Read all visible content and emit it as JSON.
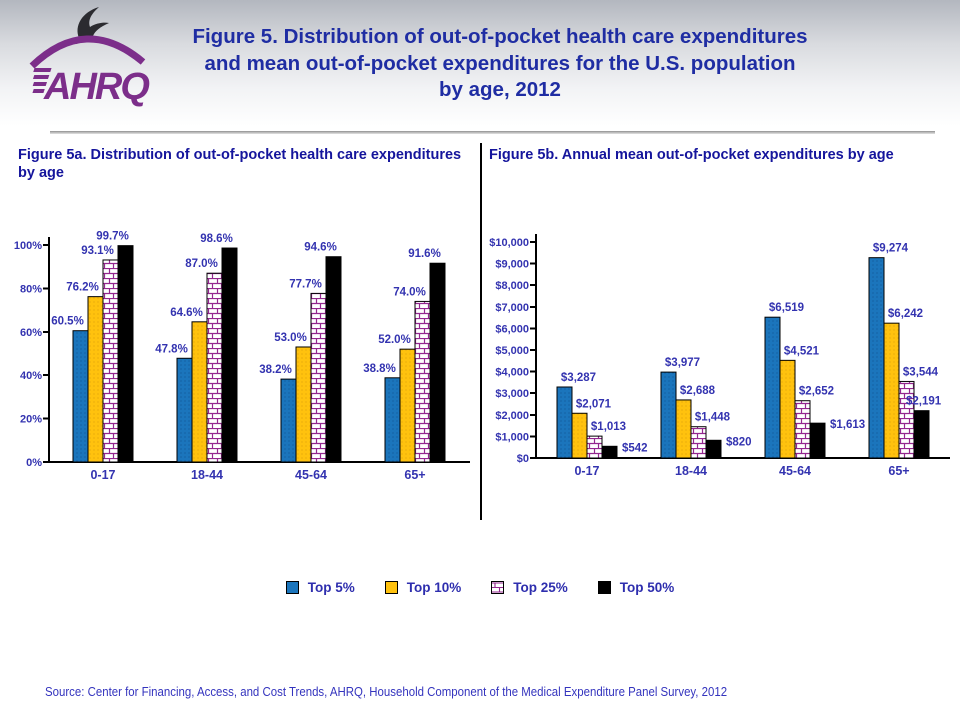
{
  "header": {
    "title": "Figure 5. Distribution of out-of-pocket health care expenditures and mean out-of-pocket expenditures for the U.S. population by age, 2012",
    "logo_text": "AHRQ"
  },
  "panels": [
    {
      "subtitle": "Figure 5a. Distribution of out-of-pocket health care expenditures by age"
    },
    {
      "subtitle": "Figure 5b. Annual mean out-of-pocket expenditures by age"
    }
  ],
  "legend": [
    {
      "label": "Top 5%",
      "fill": "blue"
    },
    {
      "label": "Top 10%",
      "fill": "yellow"
    },
    {
      "label": "Top 25%",
      "fill": "brick"
    },
    {
      "label": "Top 50%",
      "fill": "black"
    }
  ],
  "colors": {
    "bar_blue": "#1b75bc",
    "bar_yellow": "#ffc20e",
    "brick_line": "#93278f",
    "bar_black": "#000000",
    "label_blue": "#3333b0",
    "title_blue": "#1f2da3",
    "logo_purple": "#7c2e8a"
  },
  "source": "Source: Center for Financing, Access, and Cost Trends, AHRQ, Household Component of the Medical Expenditure Panel Survey, 2012",
  "chart_data": [
    {
      "type": "bar",
      "title": "Figure 5a. Distribution of out-of-pocket health care expenditures by age",
      "categories": [
        "0-17",
        "18-44",
        "45-64",
        "65+"
      ],
      "series": [
        {
          "name": "Top 5%",
          "fill": "blue",
          "values": [
            60.5,
            47.8,
            38.2,
            38.8
          ]
        },
        {
          "name": "Top 10%",
          "fill": "yellow",
          "values": [
            76.2,
            64.6,
            53.0,
            52.0
          ]
        },
        {
          "name": "Top 25%",
          "fill": "brick",
          "values": [
            93.1,
            87.0,
            77.7,
            74.0
          ]
        },
        {
          "name": "Top 50%",
          "fill": "black",
          "values": [
            99.7,
            98.6,
            94.6,
            91.6
          ]
        }
      ],
      "unit": "percent",
      "ylim": [
        0,
        100
      ],
      "ytick_step": 20,
      "grid": false,
      "legend_position": "bottom-shared"
    },
    {
      "type": "bar",
      "title": "Figure 5b. Annual mean out-of-pocket expenditures by age",
      "categories": [
        "0-17",
        "18-44",
        "45-64",
        "65+"
      ],
      "series": [
        {
          "name": "Top 5%",
          "fill": "blue",
          "values": [
            3287,
            3977,
            6519,
            9274
          ]
        },
        {
          "name": "Top 10%",
          "fill": "yellow",
          "values": [
            2071,
            2688,
            4521,
            6242
          ]
        },
        {
          "name": "Top 25%",
          "fill": "brick",
          "values": [
            1013,
            1448,
            2652,
            3544
          ]
        },
        {
          "name": "Top 50%",
          "fill": "black",
          "values": [
            542,
            820,
            1613,
            2191
          ]
        }
      ],
      "unit": "dollar",
      "ylim": [
        0,
        10000
      ],
      "ytick_step": 1000,
      "grid": false,
      "legend_position": "bottom-shared"
    }
  ]
}
